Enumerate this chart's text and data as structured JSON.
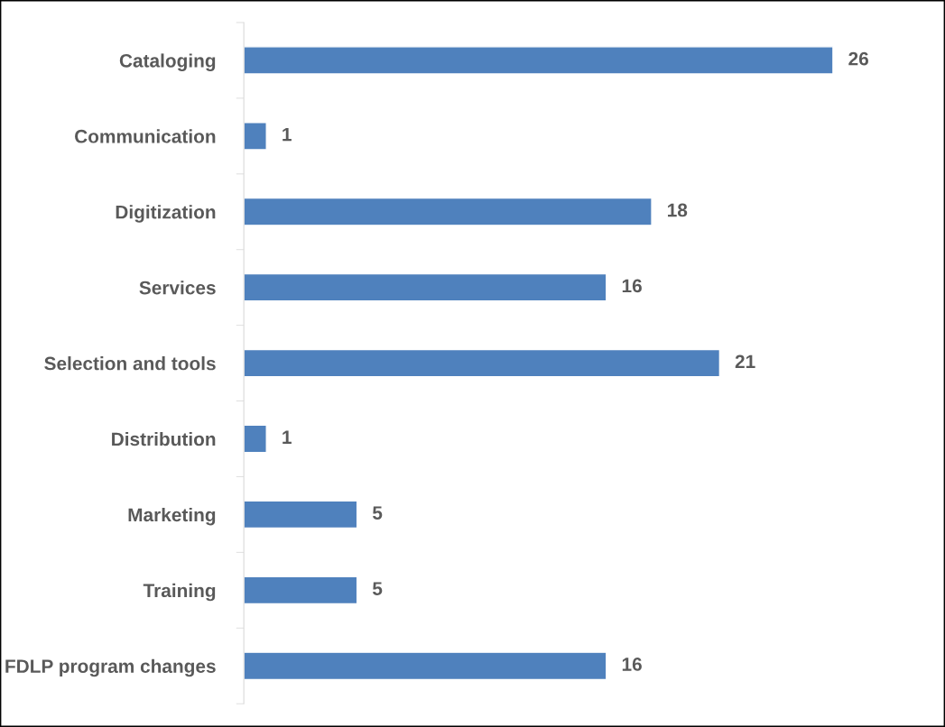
{
  "chart_data": {
    "type": "bar",
    "orientation": "horizontal",
    "categories": [
      "Cataloging",
      "Communication",
      "Digitization",
      "Services",
      "Selection and tools",
      "Distribution",
      "Marketing",
      "Training",
      "FDLP program changes"
    ],
    "values": [
      26,
      1,
      18,
      16,
      21,
      1,
      5,
      5,
      16
    ],
    "color": "#4f81bd",
    "data_labels": true,
    "grid": false,
    "legend": false
  }
}
